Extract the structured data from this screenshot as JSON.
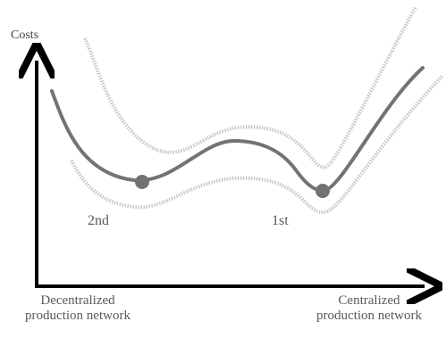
{
  "axes": {
    "y_label": "Costs",
    "x_left_label": [
      "Decentralized",
      "production network"
    ],
    "x_right_label": [
      "Centralized",
      "production network"
    ]
  },
  "markers": {
    "second": "2nd",
    "first": "1st"
  },
  "colors": {
    "main_curve": "#737373",
    "band_curve": "#c6c6c6",
    "axis": "#000000",
    "point": "#737373"
  }
}
